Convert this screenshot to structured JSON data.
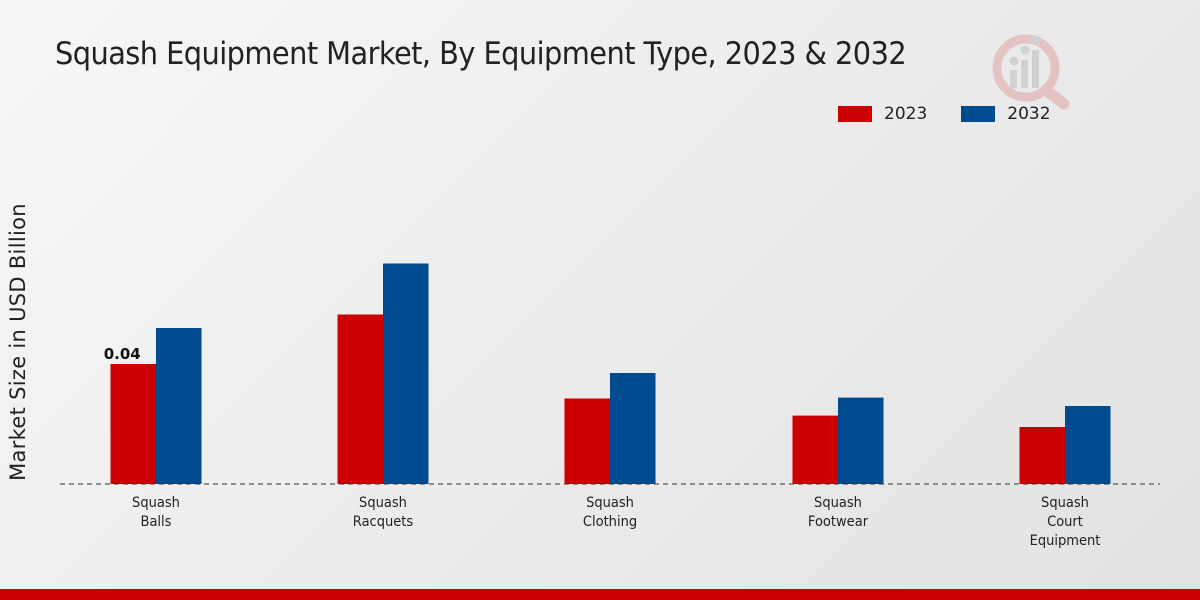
{
  "chart_data": {
    "type": "bar",
    "title": "Squash Equipment Market, By Equipment Type, 2023 & 2032",
    "ylabel": "Market Size in USD Billion",
    "xlabel": "",
    "categories": [
      [
        "Squash",
        "Balls"
      ],
      [
        "Squash",
        "Racquets"
      ],
      [
        "Squash",
        "Clothing"
      ],
      [
        "Squash",
        "Footwear"
      ],
      [
        "Squash",
        "Court",
        "Equipment"
      ]
    ],
    "series": [
      {
        "name": "2023",
        "color": "#cc0000",
        "values": [
          0.04,
          0.0565,
          0.0285,
          0.0228,
          0.019
        ]
      },
      {
        "name": "2032",
        "color": "#004a8f",
        "values": [
          0.052,
          0.0735,
          0.037,
          0.0288,
          0.026
        ]
      }
    ],
    "data_labels": [
      {
        "series": 0,
        "index": 0,
        "text": "0.04"
      }
    ],
    "ylim": [
      0,
      0.1
    ],
    "grid": false,
    "legend_position": "top-right"
  }
}
